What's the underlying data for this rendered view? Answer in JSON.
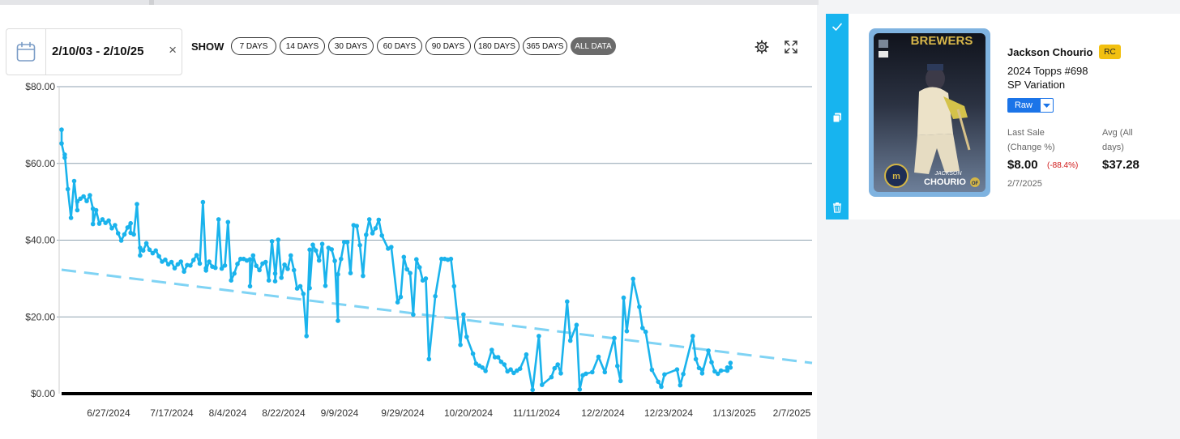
{
  "date_picker": {
    "range": "2/10/03 - 2/10/25",
    "clear": "×"
  },
  "filters": {
    "show_label": "SHOW",
    "ranges": [
      "7 DAYS",
      "14 DAYS",
      "30 DAYS",
      "60 DAYS",
      "90 DAYS",
      "180 DAYS",
      "365 DAYS",
      "ALL DATA"
    ],
    "active": "ALL DATA"
  },
  "toolbar": {
    "settings_icon": "gear-icon",
    "expand_icon": "expand-icon"
  },
  "colors": {
    "line": "#1ab3ec",
    "trend": "#7fd3f4",
    "axis": "#000000",
    "grid": "#8fa2b0",
    "accent_bar": "#17b4ef",
    "rc": "#f2c010",
    "raw": "#1b74e8",
    "negative": "#d01818"
  },
  "card": {
    "player": "Jackson Chourio",
    "rc": "RC",
    "set": "2024 Topps #698",
    "variation": "SP Variation",
    "grade": "Raw",
    "last_sale_label_1": "Last Sale",
    "last_sale_label_2": "(Change %)",
    "last_sale_value": "$8.00",
    "last_sale_change": "(-88.4%)",
    "last_sale_date": "2/7/2025",
    "avg_label_1": "Avg (All",
    "avg_label_2": "days)",
    "avg_value": "$37.28",
    "image_text_team": "BREWERS",
    "image_text_name1": "JACKSON",
    "image_text_name2": "CHOURIO",
    "image_text_pos": "OF",
    "sidebar_icons": [
      "check-icon",
      "copy-icon",
      "trash-icon"
    ]
  },
  "chart_data": {
    "type": "line",
    "title": "",
    "xlabel": "",
    "ylabel": "",
    "x_ticks": [
      "6/27/2024",
      "7/17/2024",
      "8/4/2024",
      "8/22/2024",
      "9/9/2024",
      "9/29/2024",
      "10/20/2024",
      "11/11/2024",
      "12/2/2024",
      "12/23/2024",
      "1/13/2025",
      "2/7/2025"
    ],
    "y_ticks": [
      "$0.00",
      "$20.00",
      "$40.00",
      "$60.00",
      "$80.00"
    ],
    "ylim": [
      0,
      80
    ],
    "xlim": [
      "2024-06-16",
      "2025-02-10"
    ],
    "grid": true,
    "series": [
      {
        "type": "line",
        "points": [
          [
            "2024-06-16",
            68.8
          ],
          [
            "2024-06-16",
            65.2
          ],
          [
            "2024-06-17",
            61.5
          ],
          [
            "2024-06-17",
            62.3
          ],
          [
            "2024-06-18",
            53.3
          ],
          [
            "2024-06-19",
            45.8
          ],
          [
            "2024-06-20",
            55.4
          ],
          [
            "2024-06-21",
            47.8
          ],
          [
            "2024-06-21",
            50.1
          ],
          [
            "2024-06-22",
            50.8
          ],
          [
            "2024-06-23",
            51.4
          ],
          [
            "2024-06-24",
            50.2
          ],
          [
            "2024-06-25",
            51.7
          ],
          [
            "2024-06-26",
            48.2
          ],
          [
            "2024-06-26",
            44.2
          ],
          [
            "2024-06-27",
            47.8
          ],
          [
            "2024-06-28",
            44.3
          ],
          [
            "2024-06-29",
            45.4
          ],
          [
            "2024-06-30",
            44.5
          ],
          [
            "2024-07-01",
            45.1
          ],
          [
            "2024-07-02",
            43.1
          ],
          [
            "2024-07-03",
            43.9
          ],
          [
            "2024-07-04",
            41.8
          ],
          [
            "2024-07-05",
            39.9
          ],
          [
            "2024-07-06",
            41.5
          ],
          [
            "2024-07-07",
            43.3
          ],
          [
            "2024-07-08",
            44.4
          ],
          [
            "2024-07-08",
            41.9
          ],
          [
            "2024-07-09",
            41.5
          ],
          [
            "2024-07-10",
            49.4
          ],
          [
            "2024-07-11",
            36.0
          ],
          [
            "2024-07-11",
            38.0
          ],
          [
            "2024-07-12",
            37.3
          ],
          [
            "2024-07-13",
            39.2
          ],
          [
            "2024-07-14",
            37.5
          ],
          [
            "2024-07-15",
            36.6
          ],
          [
            "2024-07-16",
            37.3
          ],
          [
            "2024-07-17",
            35.8
          ],
          [
            "2024-07-18",
            34.4
          ],
          [
            "2024-07-19",
            34.9
          ],
          [
            "2024-07-20",
            33.7
          ],
          [
            "2024-07-21",
            34.3
          ],
          [
            "2024-07-22",
            32.7
          ],
          [
            "2024-07-23",
            33.7
          ],
          [
            "2024-07-24",
            34.4
          ],
          [
            "2024-07-25",
            31.8
          ],
          [
            "2024-07-26",
            33.5
          ],
          [
            "2024-07-27",
            33.4
          ],
          [
            "2024-07-28",
            34.8
          ],
          [
            "2024-07-29",
            36.1
          ],
          [
            "2024-07-30",
            33.9
          ],
          [
            "2024-07-31",
            49.9
          ],
          [
            "2024-08-01",
            32.7
          ],
          [
            "2024-08-01",
            32.1
          ],
          [
            "2024-08-02",
            34.4
          ],
          [
            "2024-08-03",
            33.1
          ],
          [
            "2024-08-04",
            32.8
          ],
          [
            "2024-08-05",
            45.4
          ],
          [
            "2024-08-06",
            32.6
          ],
          [
            "2024-08-07",
            33.4
          ],
          [
            "2024-08-08",
            44.7
          ],
          [
            "2024-08-09",
            29.5
          ],
          [
            "2024-08-10",
            31.3
          ],
          [
            "2024-08-11",
            33.8
          ],
          [
            "2024-08-12",
            35.1
          ],
          [
            "2024-08-13",
            35.1
          ],
          [
            "2024-08-14",
            34.7
          ],
          [
            "2024-08-15",
            35.0
          ],
          [
            "2024-08-15",
            28.0
          ],
          [
            "2024-08-16",
            36.0
          ],
          [
            "2024-08-17",
            33.3
          ],
          [
            "2024-08-18",
            32.2
          ],
          [
            "2024-08-19",
            33.9
          ],
          [
            "2024-08-20",
            34.3
          ],
          [
            "2024-08-21",
            29.5
          ],
          [
            "2024-08-22",
            39.7
          ],
          [
            "2024-08-23",
            31.3
          ],
          [
            "2024-08-23",
            29.3
          ],
          [
            "2024-08-24",
            40.1
          ],
          [
            "2024-08-25",
            30.2
          ],
          [
            "2024-08-26",
            33.6
          ],
          [
            "2024-08-27",
            32.5
          ],
          [
            "2024-08-28",
            36.0
          ],
          [
            "2024-08-29",
            32.2
          ],
          [
            "2024-08-30",
            27.4
          ],
          [
            "2024-08-31",
            28.0
          ],
          [
            "2024-09-01",
            26.0
          ],
          [
            "2024-09-02",
            15.0
          ],
          [
            "2024-09-03",
            37.5
          ],
          [
            "2024-09-03",
            27.5
          ],
          [
            "2024-09-04",
            38.8
          ],
          [
            "2024-09-05",
            37.3
          ],
          [
            "2024-09-06",
            34.7
          ],
          [
            "2024-09-07",
            39.0
          ],
          [
            "2024-09-08",
            28.1
          ],
          [
            "2024-09-09",
            38.0
          ],
          [
            "2024-09-10",
            37.6
          ],
          [
            "2024-09-11",
            34.6
          ],
          [
            "2024-09-12",
            19.0
          ],
          [
            "2024-09-12",
            31.1
          ],
          [
            "2024-09-13",
            35.1
          ],
          [
            "2024-09-14",
            39.5
          ],
          [
            "2024-09-15",
            39.5
          ],
          [
            "2024-09-16",
            31.4
          ],
          [
            "2024-09-17",
            43.9
          ],
          [
            "2024-09-18",
            43.7
          ],
          [
            "2024-09-19",
            38.7
          ],
          [
            "2024-09-20",
            30.7
          ],
          [
            "2024-09-21",
            41.4
          ],
          [
            "2024-09-22",
            45.4
          ],
          [
            "2024-09-23",
            41.8
          ],
          [
            "2024-09-24",
            43.1
          ],
          [
            "2024-09-25",
            45.3
          ],
          [
            "2024-09-26",
            41.2
          ],
          [
            "2024-09-28",
            37.8
          ],
          [
            "2024-09-29",
            38.2
          ],
          [
            "2024-10-01",
            23.8
          ],
          [
            "2024-10-02",
            25.2
          ],
          [
            "2024-10-03",
            35.6
          ],
          [
            "2024-10-04",
            32.4
          ],
          [
            "2024-10-05",
            31.4
          ],
          [
            "2024-10-06",
            20.6
          ],
          [
            "2024-10-07",
            35.0
          ],
          [
            "2024-10-08",
            32.9
          ],
          [
            "2024-10-09",
            29.5
          ],
          [
            "2024-10-10",
            30.0
          ],
          [
            "2024-10-11",
            9.0
          ],
          [
            "2024-10-13",
            25.4
          ],
          [
            "2024-10-15",
            35.1
          ],
          [
            "2024-10-16",
            35.1
          ],
          [
            "2024-10-17",
            34.9
          ],
          [
            "2024-10-18",
            35.1
          ],
          [
            "2024-10-19",
            28.0
          ],
          [
            "2024-10-21",
            12.7
          ],
          [
            "2024-10-22",
            20.6
          ],
          [
            "2024-10-23",
            14.8
          ],
          [
            "2024-10-25",
            10.4
          ],
          [
            "2024-10-26",
            7.8
          ],
          [
            "2024-10-27",
            7.3
          ],
          [
            "2024-10-28",
            6.8
          ],
          [
            "2024-10-29",
            5.9
          ],
          [
            "2024-10-31",
            11.4
          ],
          [
            "2024-11-01",
            9.5
          ],
          [
            "2024-11-02",
            9.5
          ],
          [
            "2024-11-03",
            8.3
          ],
          [
            "2024-11-04",
            7.6
          ],
          [
            "2024-11-05",
            5.8
          ],
          [
            "2024-11-06",
            6.3
          ],
          [
            "2024-11-07",
            5.4
          ],
          [
            "2024-11-08",
            6.0
          ],
          [
            "2024-11-09",
            6.5
          ],
          [
            "2024-11-11",
            10.2
          ],
          [
            "2024-11-13",
            1.0
          ],
          [
            "2024-11-15",
            15.0
          ],
          [
            "2024-11-16",
            2.3
          ],
          [
            "2024-11-19",
            4.3
          ],
          [
            "2024-11-20",
            6.6
          ],
          [
            "2024-11-21",
            7.6
          ],
          [
            "2024-11-22",
            5.3
          ],
          [
            "2024-11-24",
            24.0
          ],
          [
            "2024-11-25",
            13.8
          ],
          [
            "2024-11-27",
            17.9
          ],
          [
            "2024-11-28",
            1.1
          ],
          [
            "2024-11-29",
            4.8
          ],
          [
            "2024-11-30",
            5.2
          ],
          [
            "2024-12-02",
            5.6
          ],
          [
            "2024-12-04",
            9.6
          ],
          [
            "2024-12-06",
            5.6
          ],
          [
            "2024-12-09",
            14.5
          ],
          [
            "2024-12-10",
            7.2
          ],
          [
            "2024-12-11",
            3.3
          ],
          [
            "2024-12-12",
            25.0
          ],
          [
            "2024-12-13",
            16.3
          ],
          [
            "2024-12-15",
            29.9
          ],
          [
            "2024-12-17",
            22.6
          ],
          [
            "2024-12-18",
            17.1
          ],
          [
            "2024-12-19",
            16.1
          ],
          [
            "2024-12-21",
            6.2
          ],
          [
            "2024-12-23",
            3.1
          ],
          [
            "2024-12-24",
            1.8
          ],
          [
            "2024-12-25",
            5.0
          ],
          [
            "2024-12-29",
            6.3
          ],
          [
            "2024-12-30",
            2.2
          ],
          [
            "2024-12-31",
            5.1
          ],
          [
            "2025-01-03",
            15.0
          ],
          [
            "2025-01-04",
            9.0
          ],
          [
            "2025-01-05",
            6.7
          ],
          [
            "2025-01-06",
            6.2
          ],
          [
            "2025-01-06",
            5.3
          ],
          [
            "2025-01-08",
            11.2
          ],
          [
            "2025-01-09",
            8.2
          ],
          [
            "2025-01-10",
            5.8
          ],
          [
            "2025-01-11",
            5.2
          ],
          [
            "2025-01-12",
            6.0
          ],
          [
            "2025-01-14",
            6.0
          ],
          [
            "2025-01-14",
            6.8
          ],
          [
            "2025-01-15",
            6.8
          ],
          [
            "2025-01-15",
            8.0
          ]
        ]
      },
      {
        "type": "trendline",
        "points": [
          [
            "2024-06-16",
            32.3
          ],
          [
            "2025-02-10",
            8.0
          ]
        ]
      }
    ]
  }
}
